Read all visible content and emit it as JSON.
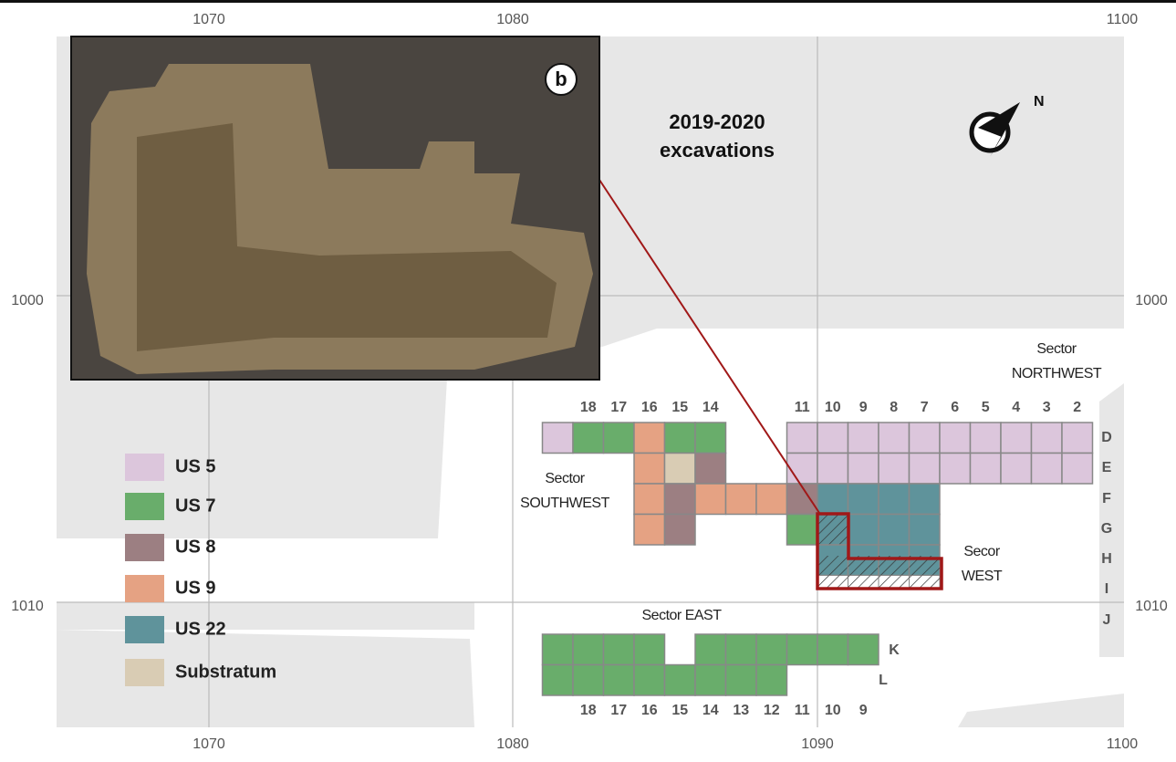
{
  "axes": {
    "top": [
      "1070",
      "1080",
      "1100"
    ],
    "bottom": [
      "1070",
      "1080",
      "1090",
      "1100"
    ],
    "left": [
      "1000",
      "1010"
    ],
    "right": [
      "1000",
      "1010"
    ]
  },
  "title": [
    "2019-2020",
    "excavations"
  ],
  "north": "N",
  "inset_label": "b",
  "sectors": {
    "northwest": [
      "Sector",
      "NORTHWEST"
    ],
    "southwest": [
      "Sector",
      "SOUTHWEST"
    ],
    "east": [
      "Sector EAST"
    ],
    "west": [
      "Secor",
      "WEST"
    ]
  },
  "legend": [
    {
      "label": "US 5",
      "color": "#dcc6dc"
    },
    {
      "label": "US 7",
      "color": "#69ad6b"
    },
    {
      "label": "US 8",
      "color": "#9c7f82"
    },
    {
      "label": "US 9",
      "color": "#e5a283"
    },
    {
      "label": "US 22",
      "color": "#5f939b"
    },
    {
      "label": "Substratum",
      "color": "#d9ccb4"
    }
  ],
  "top_columns": [
    "18",
    "17",
    "16",
    "15",
    "14",
    "11",
    "10",
    "9",
    "8",
    "7",
    "6",
    "5",
    "4",
    "3",
    "2"
  ],
  "bottom_columns": [
    "18",
    "17",
    "16",
    "15",
    "14",
    "13",
    "12",
    "11",
    "10",
    "9"
  ],
  "rows": [
    "D",
    "E",
    "F",
    "G",
    "H",
    "I",
    "J",
    "K",
    "L"
  ]
}
